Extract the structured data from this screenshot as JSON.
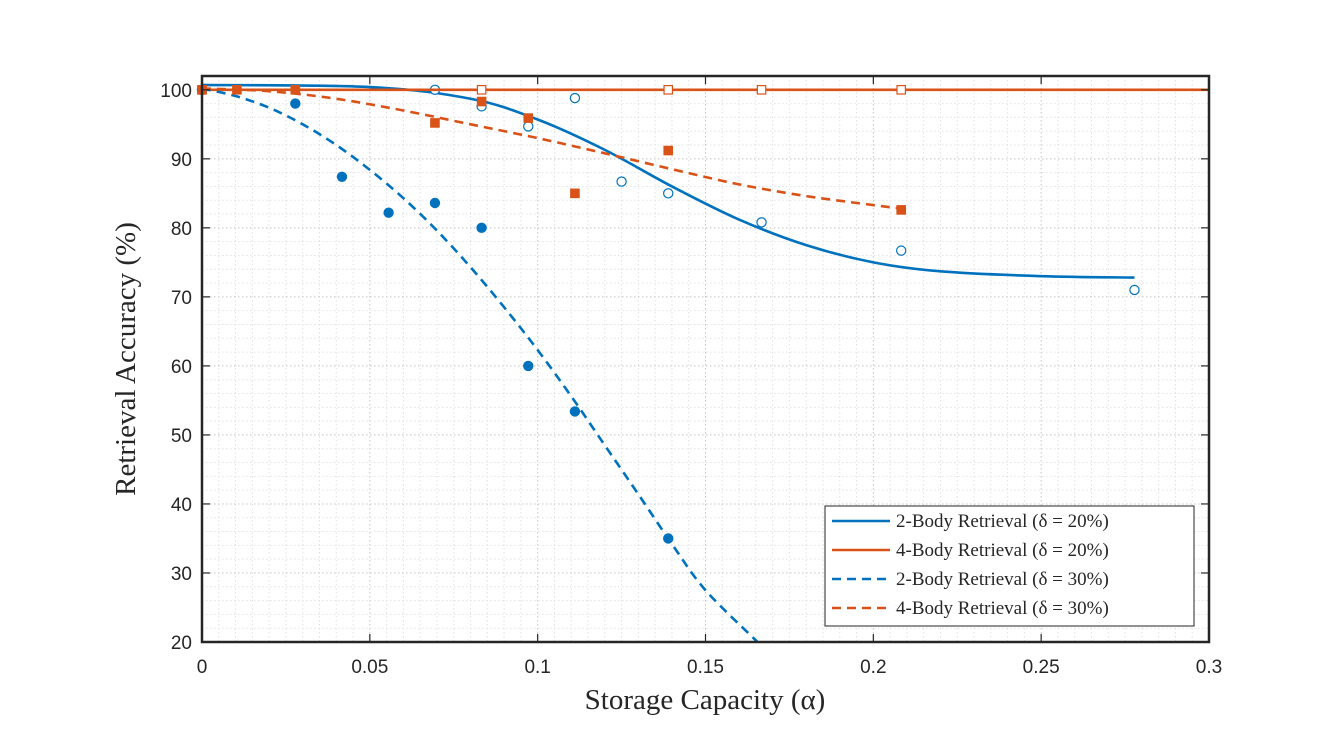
{
  "chart_data": {
    "type": "scatter",
    "xlabel": "Storage Capacity (α)",
    "ylabel": "Retrieval Accuracy (%)",
    "xlim": [
      0,
      0.3
    ],
    "ylim": [
      20,
      102
    ],
    "xticks": [
      "0",
      "0.05",
      "0.1",
      "0.15",
      "0.2",
      "0.25",
      "0.3"
    ],
    "yticks": [
      "20",
      "30",
      "40",
      "50",
      "60",
      "70",
      "80",
      "90",
      "100"
    ],
    "grid": "major and minor, dotted",
    "legend_position": "bottom-right",
    "colors": {
      "blue": "#0072BD",
      "orange": "#D95319"
    },
    "series": [
      {
        "name": "2-Body Retrieval (δ = 20%)",
        "style": "solid line, open circle markers",
        "color": "#0072BD",
        "points": [
          [
            0,
            100
          ],
          [
            0.0694,
            100
          ],
          [
            0.0833,
            97.6
          ],
          [
            0.0972,
            94.7
          ],
          [
            0.1111,
            98.8
          ],
          [
            0.125,
            86.7
          ],
          [
            0.1389,
            85.0
          ],
          [
            0.1667,
            80.8
          ],
          [
            0.2083,
            76.7
          ],
          [
            0.2778,
            71.0
          ]
        ],
        "fit": [
          [
            0,
            100.7
          ],
          [
            0.05,
            100.4
          ],
          [
            0.08,
            98.7
          ],
          [
            0.1,
            95.7
          ],
          [
            0.12,
            91.3
          ],
          [
            0.14,
            86.0
          ],
          [
            0.16,
            81.2
          ],
          [
            0.18,
            77.5
          ],
          [
            0.2,
            75.0
          ],
          [
            0.22,
            73.7
          ],
          [
            0.25,
            73.0
          ],
          [
            0.2778,
            72.8
          ]
        ]
      },
      {
        "name": "4-Body Retrieval (δ = 20%)",
        "style": "solid line, open square markers",
        "color": "#D95319",
        "points": [
          [
            0,
            100
          ],
          [
            0.0833,
            100
          ],
          [
            0.1389,
            100
          ],
          [
            0.1667,
            100
          ],
          [
            0.2083,
            100
          ]
        ],
        "fit": [
          [
            0,
            100
          ],
          [
            0.3,
            100
          ]
        ]
      },
      {
        "name": "2-Body Retrieval (δ = 30%)",
        "style": "dashed line, filled circle markers",
        "color": "#0072BD",
        "points": [
          [
            0,
            100
          ],
          [
            0.0278,
            98.0
          ],
          [
            0.0417,
            87.4
          ],
          [
            0.0556,
            82.2
          ],
          [
            0.0694,
            83.6
          ],
          [
            0.0833,
            80.0
          ],
          [
            0.0972,
            60.0
          ],
          [
            0.1111,
            53.4
          ],
          [
            0.1389,
            35.0
          ]
        ],
        "fit": [
          [
            0,
            100.2
          ],
          [
            0.01,
            99.1
          ],
          [
            0.02,
            97.4
          ],
          [
            0.03,
            95.0
          ],
          [
            0.04,
            92.0
          ],
          [
            0.05,
            88.4
          ],
          [
            0.06,
            84.3
          ],
          [
            0.07,
            79.6
          ],
          [
            0.08,
            74.3
          ],
          [
            0.09,
            68.5
          ],
          [
            0.1,
            62.3
          ],
          [
            0.11,
            55.6
          ],
          [
            0.12,
            48.5
          ],
          [
            0.13,
            41.4
          ],
          [
            0.14,
            34.2
          ],
          [
            0.15,
            27.5
          ],
          [
            0.1655,
            20
          ]
        ]
      },
      {
        "name": "4-Body Retrieval (δ = 30%)",
        "style": "dashed line, filled square markers",
        "color": "#D95319",
        "points": [
          [
            0,
            100
          ],
          [
            0.0104,
            100
          ],
          [
            0.0278,
            100
          ],
          [
            0.0694,
            95.2
          ],
          [
            0.0833,
            98.3
          ],
          [
            0.0972,
            95.9
          ],
          [
            0.1111,
            85.0
          ],
          [
            0.1389,
            91.2
          ],
          [
            0.2083,
            82.6
          ]
        ],
        "fit": [
          [
            0,
            100.2
          ],
          [
            0.02,
            99.8
          ],
          [
            0.04,
            98.7
          ],
          [
            0.06,
            97.0
          ],
          [
            0.08,
            95.0
          ],
          [
            0.1,
            93.0
          ],
          [
            0.12,
            90.8
          ],
          [
            0.14,
            88.5
          ],
          [
            0.16,
            86.3
          ],
          [
            0.18,
            84.6
          ],
          [
            0.2,
            83.3
          ],
          [
            0.2083,
            82.8
          ]
        ]
      }
    ]
  }
}
